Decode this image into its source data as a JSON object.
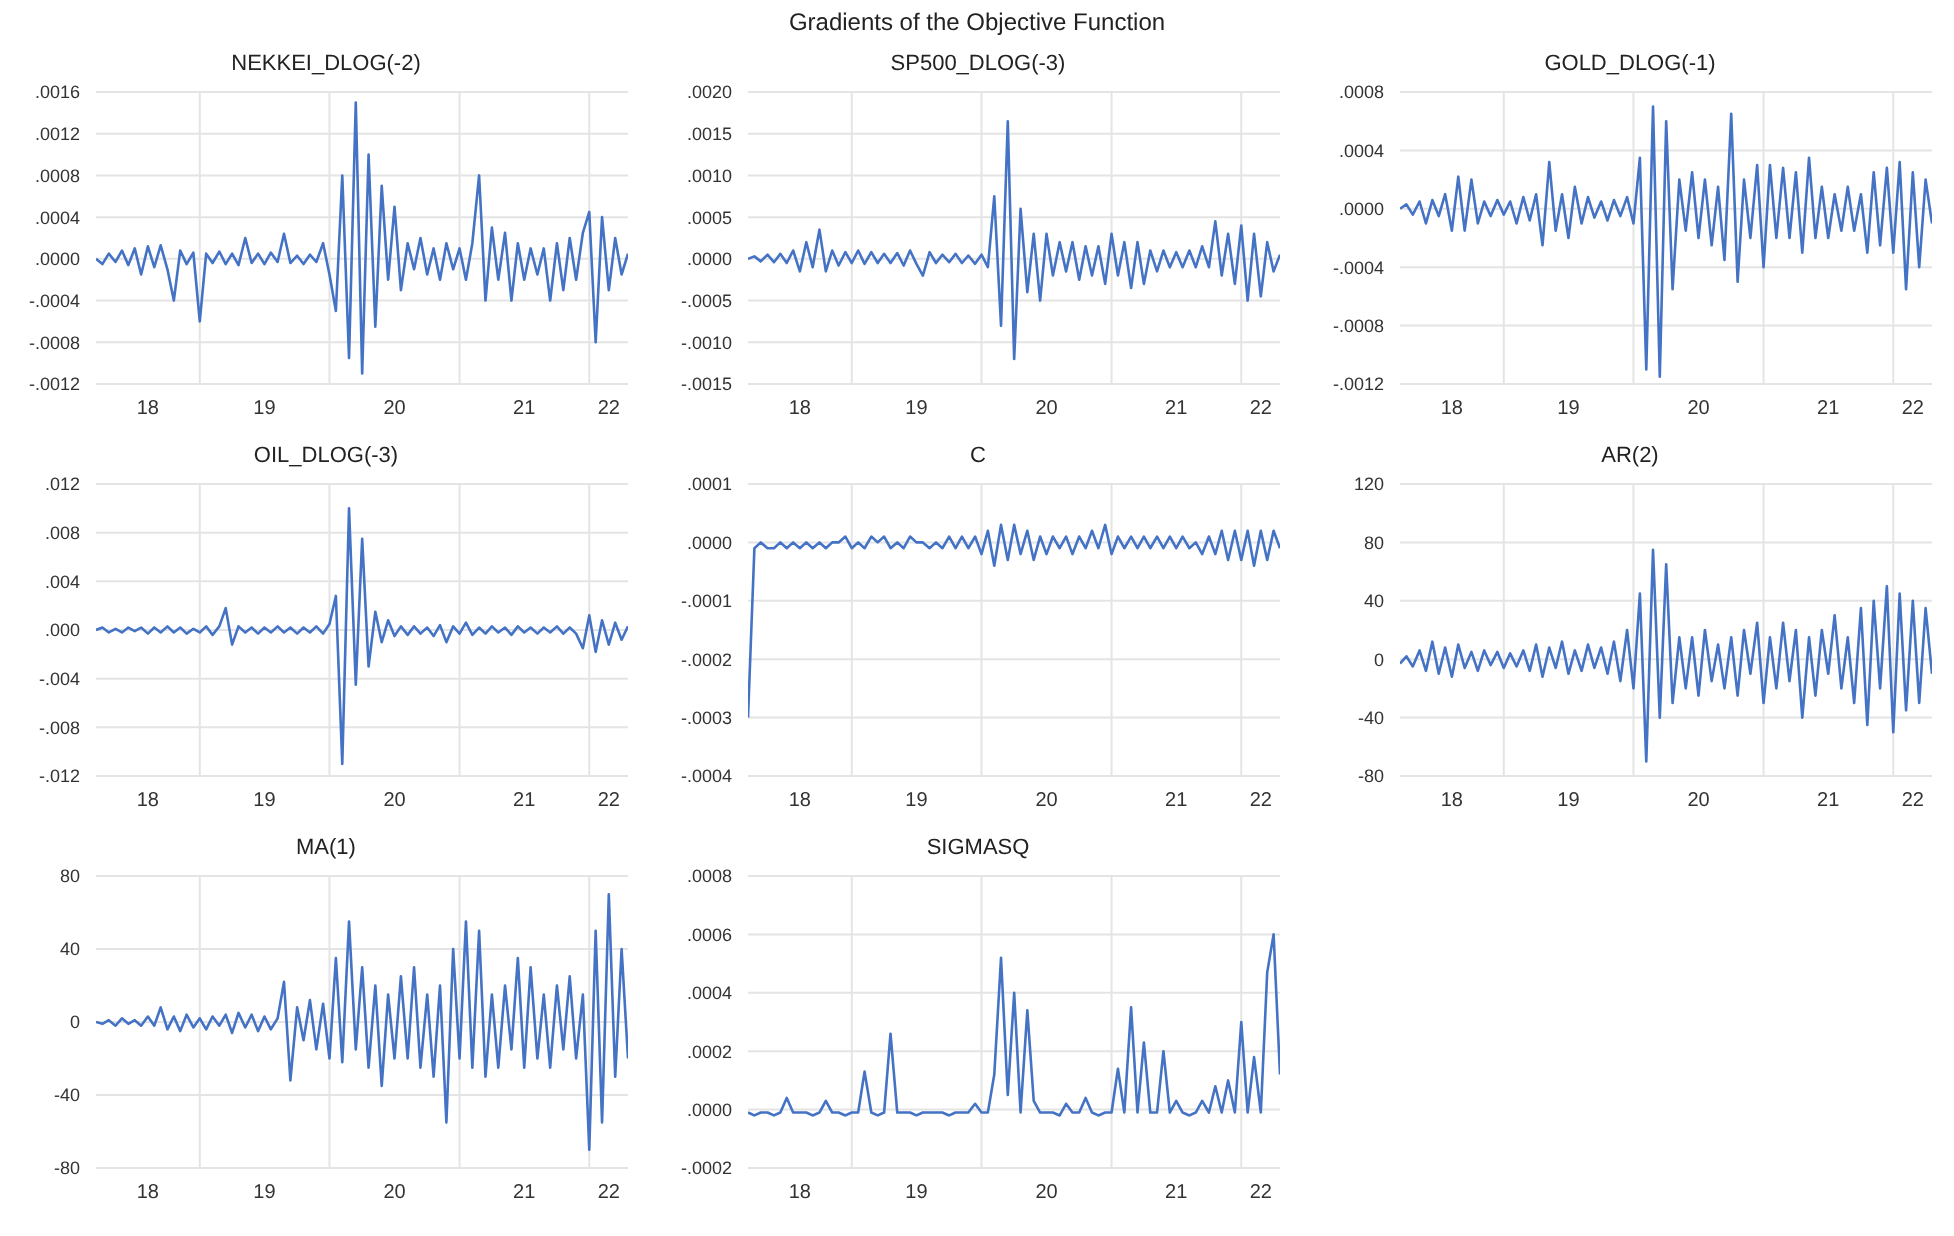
{
  "chart_data": [
    {
      "type": "line",
      "title": "NEKKEI_DLOG(-2)",
      "annotations": [
        "Gradients of the Objective Function"
      ],
      "grid": true,
      "x": [
        "2018-03-15",
        "2018-04-02",
        "2018-04-20",
        "2018-05-09",
        "2018-05-27",
        "2018-06-14",
        "2018-07-02",
        "2018-07-20",
        "2018-08-08",
        "2018-08-26",
        "2018-09-13",
        "2018-10-02",
        "2018-10-20",
        "2018-11-07",
        "2018-11-25",
        "2018-12-14",
        "2019-01-01",
        "2019-01-19",
        "2019-02-06",
        "2019-02-25",
        "2019-03-15",
        "2019-04-02",
        "2019-04-20",
        "2019-05-09",
        "2019-05-27",
        "2019-06-14",
        "2019-07-02",
        "2019-07-20",
        "2019-08-08",
        "2019-08-26",
        "2019-09-13",
        "2019-10-02",
        "2019-10-20",
        "2019-11-07",
        "2019-11-25",
        "2019-12-14",
        "2020-01-01",
        "2020-01-19",
        "2020-02-06",
        "2020-02-25",
        "2020-03-15",
        "2020-04-02",
        "2020-04-20",
        "2020-05-09",
        "2020-05-27",
        "2020-06-14",
        "2020-07-02",
        "2020-07-20",
        "2020-08-08",
        "2020-08-26",
        "2020-09-13",
        "2020-10-02",
        "2020-10-20",
        "2020-11-07",
        "2020-11-25",
        "2020-12-14",
        "2021-01-01",
        "2021-01-19",
        "2021-02-06",
        "2021-02-25",
        "2021-03-15",
        "2021-04-02",
        "2021-04-20",
        "2021-05-09",
        "2021-05-27",
        "2021-06-14",
        "2021-07-02",
        "2021-07-20",
        "2021-08-08",
        "2021-08-26",
        "2021-09-13",
        "2021-10-02",
        "2021-10-20",
        "2021-11-07",
        "2021-11-25",
        "2021-12-14",
        "2022-01-01",
        "2022-01-19",
        "2022-02-06",
        "2022-02-25",
        "2022-03-15",
        "2022-04-02",
        "2022-04-20"
      ],
      "series": [
        {
          "color": "#4472c4",
          "values": [
            0,
            -5e-05,
            5e-05,
            -3e-05,
            8e-05,
            -6e-05,
            0.0001,
            -0.00015,
            0.00012,
            -8e-05,
            0.00013,
            -0.0001,
            -0.0004,
            8e-05,
            -5e-05,
            6e-05,
            -0.0006,
            5e-05,
            -4e-05,
            7e-05,
            -5e-05,
            5e-05,
            -6e-05,
            0.0002,
            -4e-05,
            5e-05,
            -5e-05,
            6e-05,
            -3e-05,
            0.00024,
            -4e-05,
            3e-05,
            -5e-05,
            4e-05,
            -3e-05,
            0.00015,
            -0.00015,
            -0.0005,
            0.0008,
            -0.00095,
            0.0015,
            -0.0011,
            0.001,
            -0.00065,
            0.0007,
            -0.0002,
            0.0005,
            -0.0003,
            0.00015,
            -0.0001,
            0.0002,
            -0.00015,
            0.0001,
            -0.0002,
            0.00015,
            -0.0001,
            0.0001,
            -0.0002,
            0.00015,
            0.0008,
            -0.0004,
            0.0003,
            -0.0002,
            0.00025,
            -0.0004,
            0.00015,
            -0.0002,
            0.0001,
            -0.00015,
            0.0001,
            -0.0004,
            0.00015,
            -0.0003,
            0.0002,
            -0.0002,
            0.00025,
            0.00045,
            -0.0008,
            0.0004,
            -0.0003,
            0.0002,
            -0.00015,
            5e-05
          ]
        }
      ],
      "xlim": [
        "2018-03-15",
        "2022-04-20"
      ],
      "xticks": [
        {
          "value": "2018-08-08",
          "label": "18"
        },
        {
          "value": "2019-01-01",
          "label": null
        },
        {
          "value": "2019-07-02",
          "label": "19"
        },
        {
          "value": "2020-01-01",
          "label": null
        },
        {
          "value": "2020-07-02",
          "label": "20"
        },
        {
          "value": "2021-01-01",
          "label": null
        },
        {
          "value": "2021-07-02",
          "label": "21"
        },
        {
          "value": "2022-01-01",
          "label": null
        },
        {
          "value": "2022-02-25",
          "label": "22"
        }
      ],
      "ylim": [
        -0.0012,
        0.0016
      ],
      "yticks": [
        {
          "value": -0.0012,
          "label": "-.0012"
        },
        {
          "value": -0.0008,
          "label": "-.0008"
        },
        {
          "value": -0.0004,
          "label": "-.0004"
        },
        {
          "value": 0,
          "label": ".0000"
        },
        {
          "value": 0.0004,
          "label": ".0004"
        },
        {
          "value": 0.0008,
          "label": ".0008"
        },
        {
          "value": 0.0012,
          "label": ".0012"
        },
        {
          "value": 0.0016,
          "label": ".0016"
        }
      ]
    },
    {
      "type": "line",
      "title": "SP500_DLOG(-3)",
      "grid": true,
      "x": [
        "2018-03-15",
        "2018-04-02",
        "2018-04-20",
        "2018-05-09",
        "2018-05-27",
        "2018-06-14",
        "2018-07-02",
        "2018-07-20",
        "2018-08-08",
        "2018-08-26",
        "2018-09-13",
        "2018-10-02",
        "2018-10-20",
        "2018-11-07",
        "2018-11-25",
        "2018-12-14",
        "2019-01-01",
        "2019-01-19",
        "2019-02-06",
        "2019-02-25",
        "2019-03-15",
        "2019-04-02",
        "2019-04-20",
        "2019-05-09",
        "2019-05-27",
        "2019-06-14",
        "2019-07-02",
        "2019-07-20",
        "2019-08-08",
        "2019-08-26",
        "2019-09-13",
        "2019-10-02",
        "2019-10-20",
        "2019-11-07",
        "2019-11-25",
        "2019-12-14",
        "2020-01-01",
        "2020-01-19",
        "2020-02-06",
        "2020-02-25",
        "2020-03-15",
        "2020-04-02",
        "2020-04-20",
        "2020-05-09",
        "2020-05-27",
        "2020-06-14",
        "2020-07-02",
        "2020-07-20",
        "2020-08-08",
        "2020-08-26",
        "2020-09-13",
        "2020-10-02",
        "2020-10-20",
        "2020-11-07",
        "2020-11-25",
        "2020-12-14",
        "2021-01-01",
        "2021-01-19",
        "2021-02-06",
        "2021-02-25",
        "2021-03-15",
        "2021-04-02",
        "2021-04-20",
        "2021-05-09",
        "2021-05-27",
        "2021-06-14",
        "2021-07-02",
        "2021-07-20",
        "2021-08-08",
        "2021-08-26",
        "2021-09-13",
        "2021-10-02",
        "2021-10-20",
        "2021-11-07",
        "2021-11-25",
        "2021-12-14",
        "2022-01-01",
        "2022-01-19",
        "2022-02-06",
        "2022-02-25",
        "2022-03-15",
        "2022-04-02",
        "2022-04-20"
      ],
      "series": [
        {
          "color": "#4472c4",
          "values": [
            0,
            3e-05,
            -3e-05,
            5e-05,
            -4e-05,
            6e-05,
            -5e-05,
            0.0001,
            -0.00015,
            0.0002,
            -0.0001,
            0.00035,
            -0.00015,
            0.0001,
            -8e-05,
            8e-05,
            -5e-05,
            0.0001,
            -6e-05,
            8e-05,
            -5e-05,
            6e-05,
            -5e-05,
            7e-05,
            -8e-05,
            0.0001,
            -6e-05,
            -0.0002,
            8e-05,
            -5e-05,
            5e-05,
            -4e-05,
            6e-05,
            -5e-05,
            4e-05,
            -6e-05,
            5e-05,
            -0.0001,
            0.00075,
            -0.0008,
            0.00165,
            -0.0012,
            0.0006,
            -0.0004,
            0.0003,
            -0.0005,
            0.0003,
            -0.0002,
            0.0002,
            -0.00015,
            0.0002,
            -0.00025,
            0.00015,
            -0.0002,
            0.00015,
            -0.0003,
            0.0003,
            -0.0002,
            0.0002,
            -0.00035,
            0.0002,
            -0.0003,
            0.0001,
            -0.00015,
            0.0001,
            -0.0001,
            8e-05,
            -0.0001,
            0.0001,
            -0.0001,
            0.00015,
            -0.0001,
            0.00045,
            -0.0002,
            0.0003,
            -0.0003,
            0.0004,
            -0.0005,
            0.0003,
            -0.00045,
            0.0002,
            -0.00015,
            5e-05
          ]
        }
      ],
      "xlim": [
        "2018-03-15",
        "2022-04-20"
      ],
      "xticks": [
        {
          "value": "2018-08-08",
          "label": "18"
        },
        {
          "value": "2019-01-01",
          "label": null
        },
        {
          "value": "2019-07-02",
          "label": "19"
        },
        {
          "value": "2020-01-01",
          "label": null
        },
        {
          "value": "2020-07-02",
          "label": "20"
        },
        {
          "value": "2021-01-01",
          "label": null
        },
        {
          "value": "2021-07-02",
          "label": "21"
        },
        {
          "value": "2022-01-01",
          "label": null
        },
        {
          "value": "2022-02-25",
          "label": "22"
        }
      ],
      "ylim": [
        -0.0015,
        0.002
      ],
      "yticks": [
        {
          "value": -0.0015,
          "label": "-.0015"
        },
        {
          "value": -0.001,
          "label": "-.0010"
        },
        {
          "value": -0.0005,
          "label": "-.0005"
        },
        {
          "value": 0,
          "label": ".0000"
        },
        {
          "value": 0.0005,
          "label": ".0005"
        },
        {
          "value": 0.001,
          "label": ".0010"
        },
        {
          "value": 0.0015,
          "label": ".0015"
        },
        {
          "value": 0.002,
          "label": ".0020"
        }
      ]
    },
    {
      "type": "line",
      "title": "GOLD_DLOG(-1)",
      "grid": true,
      "x": [
        "2018-03-15",
        "2018-04-02",
        "2018-04-20",
        "2018-05-09",
        "2018-05-27",
        "2018-06-14",
        "2018-07-02",
        "2018-07-20",
        "2018-08-08",
        "2018-08-26",
        "2018-09-13",
        "2018-10-02",
        "2018-10-20",
        "2018-11-07",
        "2018-11-25",
        "2018-12-14",
        "2019-01-01",
        "2019-01-19",
        "2019-02-06",
        "2019-02-25",
        "2019-03-15",
        "2019-04-02",
        "2019-04-20",
        "2019-05-09",
        "2019-05-27",
        "2019-06-14",
        "2019-07-02",
        "2019-07-20",
        "2019-08-08",
        "2019-08-26",
        "2019-09-13",
        "2019-10-02",
        "2019-10-20",
        "2019-11-07",
        "2019-11-25",
        "2019-12-14",
        "2020-01-01",
        "2020-01-19",
        "2020-02-06",
        "2020-02-25",
        "2020-03-15",
        "2020-04-02",
        "2020-04-20",
        "2020-05-09",
        "2020-05-27",
        "2020-06-14",
        "2020-07-02",
        "2020-07-20",
        "2020-08-08",
        "2020-08-26",
        "2020-09-13",
        "2020-10-02",
        "2020-10-20",
        "2020-11-07",
        "2020-11-25",
        "2020-12-14",
        "2021-01-01",
        "2021-01-19",
        "2021-02-06",
        "2021-02-25",
        "2021-03-15",
        "2021-04-02",
        "2021-04-20",
        "2021-05-09",
        "2021-05-27",
        "2021-06-14",
        "2021-07-02",
        "2021-07-20",
        "2021-08-08",
        "2021-08-26",
        "2021-09-13",
        "2021-10-02",
        "2021-10-20",
        "2021-11-07",
        "2021-11-25",
        "2021-12-14",
        "2022-01-01",
        "2022-01-19",
        "2022-02-06",
        "2022-02-25",
        "2022-03-15",
        "2022-04-02",
        "2022-04-20"
      ],
      "series": [
        {
          "color": "#4472c4",
          "values": [
            0,
            3e-05,
            -4e-05,
            5e-05,
            -0.0001,
            6e-05,
            -5e-05,
            0.0001,
            -0.00015,
            0.00022,
            -0.00015,
            0.0002,
            -0.0001,
            5e-05,
            -5e-05,
            6e-05,
            -4e-05,
            5e-05,
            -0.0001,
            8e-05,
            -8e-05,
            0.0001,
            -0.00025,
            0.00032,
            -0.00015,
            0.0001,
            -0.0002,
            0.00015,
            -0.0001,
            8e-05,
            -6e-05,
            5e-05,
            -8e-05,
            6e-05,
            -5e-05,
            8e-05,
            -0.0001,
            0.00035,
            -0.0011,
            0.0007,
            -0.00115,
            0.0006,
            -0.00055,
            0.0002,
            -0.00015,
            0.00025,
            -0.0002,
            0.0002,
            -0.00025,
            0.00015,
            -0.00035,
            0.00065,
            -0.0005,
            0.0002,
            -0.0002,
            0.0003,
            -0.0004,
            0.0003,
            -0.0002,
            0.00028,
            -0.0002,
            0.00025,
            -0.0003,
            0.00035,
            -0.0002,
            0.00015,
            -0.0002,
            0.0001,
            -0.00015,
            0.00015,
            -0.00015,
            0.0001,
            -0.0003,
            0.00025,
            -0.00025,
            0.00028,
            -0.0003,
            0.00032,
            -0.00055,
            0.00025,
            -0.0004,
            0.0002,
            -0.0001
          ]
        }
      ],
      "xlim": [
        "2018-03-15",
        "2022-04-20"
      ],
      "xticks": [
        {
          "value": "2018-08-08",
          "label": "18"
        },
        {
          "value": "2019-01-01",
          "label": null
        },
        {
          "value": "2019-07-02",
          "label": "19"
        },
        {
          "value": "2020-01-01",
          "label": null
        },
        {
          "value": "2020-07-02",
          "label": "20"
        },
        {
          "value": "2021-01-01",
          "label": null
        },
        {
          "value": "2021-07-02",
          "label": "21"
        },
        {
          "value": "2022-01-01",
          "label": null
        },
        {
          "value": "2022-02-25",
          "label": "22"
        }
      ],
      "ylim": [
        -0.0012,
        0.0008
      ],
      "yticks": [
        {
          "value": -0.0012,
          "label": "-.0012"
        },
        {
          "value": -0.0008,
          "label": "-.0008"
        },
        {
          "value": -0.0004,
          "label": "-.0004"
        },
        {
          "value": 0,
          "label": ".0000"
        },
        {
          "value": 0.0004,
          "label": ".0004"
        },
        {
          "value": 0.0008,
          "label": ".0008"
        }
      ]
    },
    {
      "type": "line",
      "title": "OIL_DLOG(-3)",
      "grid": true,
      "x": [
        "2018-03-15",
        "2018-04-02",
        "2018-04-20",
        "2018-05-09",
        "2018-05-27",
        "2018-06-14",
        "2018-07-02",
        "2018-07-20",
        "2018-08-08",
        "2018-08-26",
        "2018-09-13",
        "2018-10-02",
        "2018-10-20",
        "2018-11-07",
        "2018-11-25",
        "2018-12-14",
        "2019-01-01",
        "2019-01-19",
        "2019-02-06",
        "2019-02-25",
        "2019-03-15",
        "2019-04-02",
        "2019-04-20",
        "2019-05-09",
        "2019-05-27",
        "2019-06-14",
        "2019-07-02",
        "2019-07-20",
        "2019-08-08",
        "2019-08-26",
        "2019-09-13",
        "2019-10-02",
        "2019-10-20",
        "2019-11-07",
        "2019-11-25",
        "2019-12-14",
        "2020-01-01",
        "2020-01-19",
        "2020-02-06",
        "2020-02-25",
        "2020-03-15",
        "2020-04-02",
        "2020-04-20",
        "2020-05-09",
        "2020-05-27",
        "2020-06-14",
        "2020-07-02",
        "2020-07-20",
        "2020-08-08",
        "2020-08-26",
        "2020-09-13",
        "2020-10-02",
        "2020-10-20",
        "2020-11-07",
        "2020-11-25",
        "2020-12-14",
        "2021-01-01",
        "2021-01-19",
        "2021-02-06",
        "2021-02-25",
        "2021-03-15",
        "2021-04-02",
        "2021-04-20",
        "2021-05-09",
        "2021-05-27",
        "2021-06-14",
        "2021-07-02",
        "2021-07-20",
        "2021-08-08",
        "2021-08-26",
        "2021-09-13",
        "2021-10-02",
        "2021-10-20",
        "2021-11-07",
        "2021-11-25",
        "2021-12-14",
        "2022-01-01",
        "2022-01-19",
        "2022-02-06",
        "2022-02-25",
        "2022-03-15",
        "2022-04-02",
        "2022-04-20"
      ],
      "series": [
        {
          "color": "#4472c4",
          "values": [
            0,
            0.0002,
            -0.0002,
            0.0001,
            -0.0002,
            0.0002,
            -0.0001,
            0.0002,
            -0.0003,
            0.0002,
            -0.0002,
            0.0003,
            -0.0002,
            0.0002,
            -0.0003,
            0.0001,
            -0.0002,
            0.0003,
            -0.0004,
            0.0003,
            0.0018,
            -0.0012,
            0.0003,
            -0.0002,
            0.0002,
            -0.0003,
            0.0002,
            -0.0002,
            0.0003,
            -0.0002,
            0.0002,
            -0.0003,
            0.0002,
            -0.0002,
            0.0003,
            -0.0003,
            0.0005,
            0.0028,
            -0.011,
            0.01,
            -0.0045,
            0.0075,
            -0.003,
            0.0015,
            -0.001,
            0.0008,
            -0.0005,
            0.0003,
            -0.0004,
            0.0003,
            -0.0003,
            0.0002,
            -0.0005,
            0.0004,
            -0.001,
            0.0003,
            -0.0003,
            0.0006,
            -0.0004,
            0.0002,
            -0.0003,
            0.0003,
            -0.0002,
            0.0002,
            -0.0004,
            0.0003,
            -0.0002,
            0.0002,
            -0.0003,
            0.0002,
            -0.0002,
            0.0003,
            -0.0003,
            0.0002,
            -0.0003,
            -0.0015,
            0.0012,
            -0.0018,
            0.0008,
            -0.0012,
            0.0006,
            -0.0008,
            0.0003
          ]
        }
      ],
      "xlim": [
        "2018-03-15",
        "2022-04-20"
      ],
      "xticks": [
        {
          "value": "2018-08-08",
          "label": "18"
        },
        {
          "value": "2019-01-01",
          "label": null
        },
        {
          "value": "2019-07-02",
          "label": "19"
        },
        {
          "value": "2020-01-01",
          "label": null
        },
        {
          "value": "2020-07-02",
          "label": "20"
        },
        {
          "value": "2021-01-01",
          "label": null
        },
        {
          "value": "2021-07-02",
          "label": "21"
        },
        {
          "value": "2022-01-01",
          "label": null
        },
        {
          "value": "2022-02-25",
          "label": "22"
        }
      ],
      "ylim": [
        -0.012,
        0.012
      ],
      "yticks": [
        {
          "value": -0.012,
          "label": "-.012"
        },
        {
          "value": -0.008,
          "label": "-.008"
        },
        {
          "value": -0.004,
          "label": "-.004"
        },
        {
          "value": 0,
          "label": ".000"
        },
        {
          "value": 0.004,
          "label": ".004"
        },
        {
          "value": 0.008,
          "label": ".008"
        },
        {
          "value": 0.012,
          "label": ".012"
        }
      ]
    },
    {
      "type": "line",
      "title": "C",
      "grid": true,
      "x": [
        "2018-03-15",
        "2018-04-02",
        "2018-04-20",
        "2018-05-09",
        "2018-05-27",
        "2018-06-14",
        "2018-07-02",
        "2018-07-20",
        "2018-08-08",
        "2018-08-26",
        "2018-09-13",
        "2018-10-02",
        "2018-10-20",
        "2018-11-07",
        "2018-11-25",
        "2018-12-14",
        "2019-01-01",
        "2019-01-19",
        "2019-02-06",
        "2019-02-25",
        "2019-03-15",
        "2019-04-02",
        "2019-04-20",
        "2019-05-09",
        "2019-05-27",
        "2019-06-14",
        "2019-07-02",
        "2019-07-20",
        "2019-08-08",
        "2019-08-26",
        "2019-09-13",
        "2019-10-02",
        "2019-10-20",
        "2019-11-07",
        "2019-11-25",
        "2019-12-14",
        "2020-01-01",
        "2020-01-19",
        "2020-02-06",
        "2020-02-25",
        "2020-03-15",
        "2020-04-02",
        "2020-04-20",
        "2020-05-09",
        "2020-05-27",
        "2020-06-14",
        "2020-07-02",
        "2020-07-20",
        "2020-08-08",
        "2020-08-26",
        "2020-09-13",
        "2020-10-02",
        "2020-10-20",
        "2020-11-07",
        "2020-11-25",
        "2020-12-14",
        "2021-01-01",
        "2021-01-19",
        "2021-02-06",
        "2021-02-25",
        "2021-03-15",
        "2021-04-02",
        "2021-04-20",
        "2021-05-09",
        "2021-05-27",
        "2021-06-14",
        "2021-07-02",
        "2021-07-20",
        "2021-08-08",
        "2021-08-26",
        "2021-09-13",
        "2021-10-02",
        "2021-10-20",
        "2021-11-07",
        "2021-11-25",
        "2021-12-14",
        "2022-01-01",
        "2022-01-19",
        "2022-02-06",
        "2022-02-25",
        "2022-03-15",
        "2022-04-02",
        "2022-04-20"
      ],
      "series": [
        {
          "color": "#4472c4",
          "values": [
            -0.0003,
            -1e-05,
            0,
            -1e-05,
            -1e-05,
            0,
            -1e-05,
            0,
            -1e-05,
            0,
            -1e-05,
            0,
            -1e-05,
            0,
            0,
            1e-05,
            -1e-05,
            0,
            -1e-05,
            1e-05,
            0,
            1e-05,
            -1e-05,
            0,
            -1e-05,
            1e-05,
            0,
            0,
            -1e-05,
            0,
            -1e-05,
            1e-05,
            -1e-05,
            1e-05,
            -1e-05,
            1e-05,
            -2e-05,
            2e-05,
            -4e-05,
            3e-05,
            -3e-05,
            3e-05,
            -2e-05,
            2e-05,
            -3e-05,
            1e-05,
            -2e-05,
            1e-05,
            -1e-05,
            1e-05,
            -2e-05,
            1e-05,
            -1e-05,
            2e-05,
            -1e-05,
            3e-05,
            -2e-05,
            1e-05,
            -1e-05,
            1e-05,
            -1e-05,
            1e-05,
            -1e-05,
            1e-05,
            -1e-05,
            1e-05,
            -1e-05,
            1e-05,
            -1e-05,
            0,
            -2e-05,
            1e-05,
            -2e-05,
            2e-05,
            -3e-05,
            2e-05,
            -3e-05,
            2e-05,
            -4e-05,
            2e-05,
            -3e-05,
            2e-05,
            -1e-05
          ]
        }
      ],
      "xlim": [
        "2018-03-15",
        "2022-04-20"
      ],
      "xticks": [
        {
          "value": "2018-08-08",
          "label": "18"
        },
        {
          "value": "2019-01-01",
          "label": null
        },
        {
          "value": "2019-07-02",
          "label": "19"
        },
        {
          "value": "2020-01-01",
          "label": null
        },
        {
          "value": "2020-07-02",
          "label": "20"
        },
        {
          "value": "2021-01-01",
          "label": null
        },
        {
          "value": "2021-07-02",
          "label": "21"
        },
        {
          "value": "2022-01-01",
          "label": null
        },
        {
          "value": "2022-02-25",
          "label": "22"
        }
      ],
      "ylim": [
        -0.0004,
        0.0001
      ],
      "yticks": [
        {
          "value": -0.0004,
          "label": "-.0004"
        },
        {
          "value": -0.0003,
          "label": "-.0003"
        },
        {
          "value": -0.0002,
          "label": "-.0002"
        },
        {
          "value": -0.0001,
          "label": "-.0001"
        },
        {
          "value": 0,
          "label": ".0000"
        },
        {
          "value": 0.0001,
          "label": ".0001"
        }
      ]
    },
    {
      "type": "line",
      "title": "AR(2)",
      "grid": true,
      "x": [
        "2018-03-15",
        "2018-04-02",
        "2018-04-20",
        "2018-05-09",
        "2018-05-27",
        "2018-06-14",
        "2018-07-02",
        "2018-07-20",
        "2018-08-08",
        "2018-08-26",
        "2018-09-13",
        "2018-10-02",
        "2018-10-20",
        "2018-11-07",
        "2018-11-25",
        "2018-12-14",
        "2019-01-01",
        "2019-01-19",
        "2019-02-06",
        "2019-02-25",
        "2019-03-15",
        "2019-04-02",
        "2019-04-20",
        "2019-05-09",
        "2019-05-27",
        "2019-06-14",
        "2019-07-02",
        "2019-07-20",
        "2019-08-08",
        "2019-08-26",
        "2019-09-13",
        "2019-10-02",
        "2019-10-20",
        "2019-11-07",
        "2019-11-25",
        "2019-12-14",
        "2020-01-01",
        "2020-01-19",
        "2020-02-06",
        "2020-02-25",
        "2020-03-15",
        "2020-04-02",
        "2020-04-20",
        "2020-05-09",
        "2020-05-27",
        "2020-06-14",
        "2020-07-02",
        "2020-07-20",
        "2020-08-08",
        "2020-08-26",
        "2020-09-13",
        "2020-10-02",
        "2020-10-20",
        "2020-11-07",
        "2020-11-25",
        "2020-12-14",
        "2021-01-01",
        "2021-01-19",
        "2021-02-06",
        "2021-02-25",
        "2021-03-15",
        "2021-04-02",
        "2021-04-20",
        "2021-05-09",
        "2021-05-27",
        "2021-06-14",
        "2021-07-02",
        "2021-07-20",
        "2021-08-08",
        "2021-08-26",
        "2021-09-13",
        "2021-10-02",
        "2021-10-20",
        "2021-11-07",
        "2021-11-25",
        "2021-12-14",
        "2022-01-01",
        "2022-01-19",
        "2022-02-06",
        "2022-02-25",
        "2022-03-15",
        "2022-04-02",
        "2022-04-20"
      ],
      "series": [
        {
          "color": "#4472c4",
          "values": [
            -3,
            2,
            -5,
            6,
            -8,
            12,
            -10,
            8,
            -12,
            10,
            -6,
            5,
            -8,
            6,
            -4,
            5,
            -6,
            4,
            -5,
            6,
            -8,
            10,
            -12,
            8,
            -6,
            12,
            -10,
            6,
            -8,
            10,
            -6,
            8,
            -10,
            12,
            -15,
            20,
            -20,
            45,
            -70,
            75,
            -40,
            65,
            -30,
            15,
            -20,
            15,
            -25,
            20,
            -15,
            10,
            -20,
            15,
            -25,
            20,
            -10,
            25,
            -30,
            15,
            -20,
            25,
            -15,
            20,
            -40,
            15,
            -25,
            20,
            -10,
            30,
            -20,
            15,
            -30,
            35,
            -45,
            40,
            -20,
            50,
            -50,
            45,
            -35,
            40,
            -30,
            35,
            -10
          ]
        }
      ],
      "xlim": [
        "2018-03-15",
        "2022-04-20"
      ],
      "xticks": [
        {
          "value": "2018-08-08",
          "label": "18"
        },
        {
          "value": "2019-01-01",
          "label": null
        },
        {
          "value": "2019-07-02",
          "label": "19"
        },
        {
          "value": "2020-01-01",
          "label": null
        },
        {
          "value": "2020-07-02",
          "label": "20"
        },
        {
          "value": "2021-01-01",
          "label": null
        },
        {
          "value": "2021-07-02",
          "label": "21"
        },
        {
          "value": "2022-01-01",
          "label": null
        },
        {
          "value": "2022-02-25",
          "label": "22"
        }
      ],
      "ylim": [
        -80,
        120
      ],
      "yticks": [
        -80,
        -40,
        0,
        40,
        80,
        120
      ]
    },
    {
      "type": "line",
      "title": "MA(1)",
      "grid": true,
      "x": [
        "2018-03-15",
        "2018-04-02",
        "2018-04-20",
        "2018-05-09",
        "2018-05-27",
        "2018-06-14",
        "2018-07-02",
        "2018-07-20",
        "2018-08-08",
        "2018-08-26",
        "2018-09-13",
        "2018-10-02",
        "2018-10-20",
        "2018-11-07",
        "2018-11-25",
        "2018-12-14",
        "2019-01-01",
        "2019-01-19",
        "2019-02-06",
        "2019-02-25",
        "2019-03-15",
        "2019-04-02",
        "2019-04-20",
        "2019-05-09",
        "2019-05-27",
        "2019-06-14",
        "2019-07-02",
        "2019-07-20",
        "2019-08-08",
        "2019-08-26",
        "2019-09-13",
        "2019-10-02",
        "2019-10-20",
        "2019-11-07",
        "2019-11-25",
        "2019-12-14",
        "2020-01-01",
        "2020-01-19",
        "2020-02-06",
        "2020-02-25",
        "2020-03-15",
        "2020-04-02",
        "2020-04-20",
        "2020-05-09",
        "2020-05-27",
        "2020-06-14",
        "2020-07-02",
        "2020-07-20",
        "2020-08-08",
        "2020-08-26",
        "2020-09-13",
        "2020-10-02",
        "2020-10-20",
        "2020-11-07",
        "2020-11-25",
        "2020-12-14",
        "2021-01-01",
        "2021-01-19",
        "2021-02-06",
        "2021-02-25",
        "2021-03-15",
        "2021-04-02",
        "2021-04-20",
        "2021-05-09",
        "2021-05-27",
        "2021-06-14",
        "2021-07-02",
        "2021-07-20",
        "2021-08-08",
        "2021-08-26",
        "2021-09-13",
        "2021-10-02",
        "2021-10-20",
        "2021-11-07",
        "2021-11-25",
        "2021-12-14",
        "2022-01-01",
        "2022-01-19",
        "2022-02-06",
        "2022-02-25",
        "2022-03-15",
        "2022-04-02",
        "2022-04-20"
      ],
      "series": [
        {
          "color": "#4472c4",
          "values": [
            0,
            -1,
            1,
            -2,
            2,
            -1,
            1,
            -2,
            3,
            -2,
            8,
            -4,
            3,
            -5,
            4,
            -3,
            2,
            -4,
            3,
            -2,
            4,
            -6,
            5,
            -3,
            4,
            -5,
            3,
            -4,
            2,
            22,
            -32,
            8,
            -10,
            12,
            -15,
            10,
            -20,
            35,
            -22,
            55,
            -15,
            30,
            -25,
            20,
            -35,
            15,
            -20,
            25,
            -20,
            30,
            -25,
            15,
            -30,
            20,
            -55,
            40,
            -20,
            55,
            -25,
            50,
            -30,
            15,
            -25,
            20,
            -15,
            35,
            -25,
            30,
            -20,
            15,
            -25,
            20,
            -15,
            25,
            -20,
            15,
            -70,
            50,
            -55,
            70,
            -30,
            40,
            -20
          ]
        }
      ],
      "xlim": [
        "2018-03-15",
        "2022-04-20"
      ],
      "xticks": [
        {
          "value": "2018-08-08",
          "label": "18"
        },
        {
          "value": "2019-01-01",
          "label": null
        },
        {
          "value": "2019-07-02",
          "label": "19"
        },
        {
          "value": "2020-01-01",
          "label": null
        },
        {
          "value": "2020-07-02",
          "label": "20"
        },
        {
          "value": "2021-01-01",
          "label": null
        },
        {
          "value": "2021-07-02",
          "label": "21"
        },
        {
          "value": "2022-01-01",
          "label": null
        },
        {
          "value": "2022-02-25",
          "label": "22"
        }
      ],
      "ylim": [
        -80,
        80
      ],
      "yticks": [
        -80,
        -40,
        0,
        40,
        80
      ]
    },
    {
      "type": "line",
      "title": "SIGMASQ",
      "grid": true,
      "x": [
        "2018-03-15",
        "2018-04-02",
        "2018-04-20",
        "2018-05-09",
        "2018-05-27",
        "2018-06-14",
        "2018-07-02",
        "2018-07-20",
        "2018-08-08",
        "2018-08-26",
        "2018-09-13",
        "2018-10-02",
        "2018-10-20",
        "2018-11-07",
        "2018-11-25",
        "2018-12-14",
        "2019-01-01",
        "2019-01-19",
        "2019-02-06",
        "2019-02-25",
        "2019-03-15",
        "2019-04-02",
        "2019-04-20",
        "2019-05-09",
        "2019-05-27",
        "2019-06-14",
        "2019-07-02",
        "2019-07-20",
        "2019-08-08",
        "2019-08-26",
        "2019-09-13",
        "2019-10-02",
        "2019-10-20",
        "2019-11-07",
        "2019-11-25",
        "2019-12-14",
        "2020-01-01",
        "2020-01-19",
        "2020-02-06",
        "2020-02-25",
        "2020-03-15",
        "2020-04-02",
        "2020-04-20",
        "2020-05-09",
        "2020-05-27",
        "2020-06-14",
        "2020-07-02",
        "2020-07-20",
        "2020-08-08",
        "2020-08-26",
        "2020-09-13",
        "2020-10-02",
        "2020-10-20",
        "2020-11-07",
        "2020-11-25",
        "2020-12-14",
        "2021-01-01",
        "2021-01-19",
        "2021-02-06",
        "2021-02-25",
        "2021-03-15",
        "2021-04-02",
        "2021-04-20",
        "2021-05-09",
        "2021-05-27",
        "2021-06-14",
        "2021-07-02",
        "2021-07-20",
        "2021-08-08",
        "2021-08-26",
        "2021-09-13",
        "2021-10-02",
        "2021-10-20",
        "2021-11-07",
        "2021-11-25",
        "2021-12-14",
        "2022-01-01",
        "2022-01-19",
        "2022-02-06",
        "2022-02-25",
        "2022-03-15",
        "2022-04-02",
        "2022-04-20"
      ],
      "series": [
        {
          "color": "#4472c4",
          "values": [
            -1e-05,
            -2e-05,
            -1e-05,
            -1e-05,
            -2e-05,
            -1e-05,
            4e-05,
            -1e-05,
            -1e-05,
            -1e-05,
            -2e-05,
            -1e-05,
            3e-05,
            -1e-05,
            -1e-05,
            -2e-05,
            -1e-05,
            -1e-05,
            0.00013,
            -1e-05,
            -2e-05,
            -1e-05,
            0.00026,
            -1e-05,
            -1e-05,
            -1e-05,
            -2e-05,
            -1e-05,
            -1e-05,
            -1e-05,
            -1e-05,
            -2e-05,
            -1e-05,
            -1e-05,
            -1e-05,
            2e-05,
            -1e-05,
            -1e-05,
            0.00012,
            0.00052,
            5e-05,
            0.0004,
            -1e-05,
            0.00034,
            3e-05,
            -1e-05,
            -1e-05,
            -1e-05,
            -2e-05,
            2e-05,
            -1e-05,
            -1e-05,
            4e-05,
            -1e-05,
            -2e-05,
            -1e-05,
            -1e-05,
            0.00014,
            -1e-05,
            0.00035,
            -1e-05,
            0.00023,
            -1e-05,
            -1e-05,
            0.0002,
            -1e-05,
            3e-05,
            -1e-05,
            -2e-05,
            -1e-05,
            3e-05,
            -1e-05,
            8e-05,
            -1e-05,
            0.0001,
            -1e-05,
            0.0003,
            -1e-05,
            0.00018,
            -1e-05,
            0.00047,
            0.0006,
            0.00012
          ]
        }
      ],
      "xlim": [
        "2018-03-15",
        "2022-04-20"
      ],
      "xticks": [
        {
          "value": "2018-08-08",
          "label": "18"
        },
        {
          "value": "2019-01-01",
          "label": null
        },
        {
          "value": "2019-07-02",
          "label": "19"
        },
        {
          "value": "2020-01-01",
          "label": null
        },
        {
          "value": "2020-07-02",
          "label": "20"
        },
        {
          "value": "2021-01-01",
          "label": null
        },
        {
          "value": "2021-07-02",
          "label": "21"
        },
        {
          "value": "2022-01-01",
          "label": null
        },
        {
          "value": "2022-02-25",
          "label": "22"
        }
      ],
      "ylim": [
        -0.0002,
        0.0008
      ],
      "yticks": [
        {
          "value": -0.0002,
          "label": "-.0002"
        },
        {
          "value": 0,
          "label": ".0000"
        },
        {
          "value": 0.0002,
          "label": ".0002"
        },
        {
          "value": 0.0004,
          "label": ".0004"
        },
        {
          "value": 0.0006,
          "label": ".0006"
        },
        {
          "value": 0.0008,
          "label": ".0008"
        }
      ]
    }
  ]
}
